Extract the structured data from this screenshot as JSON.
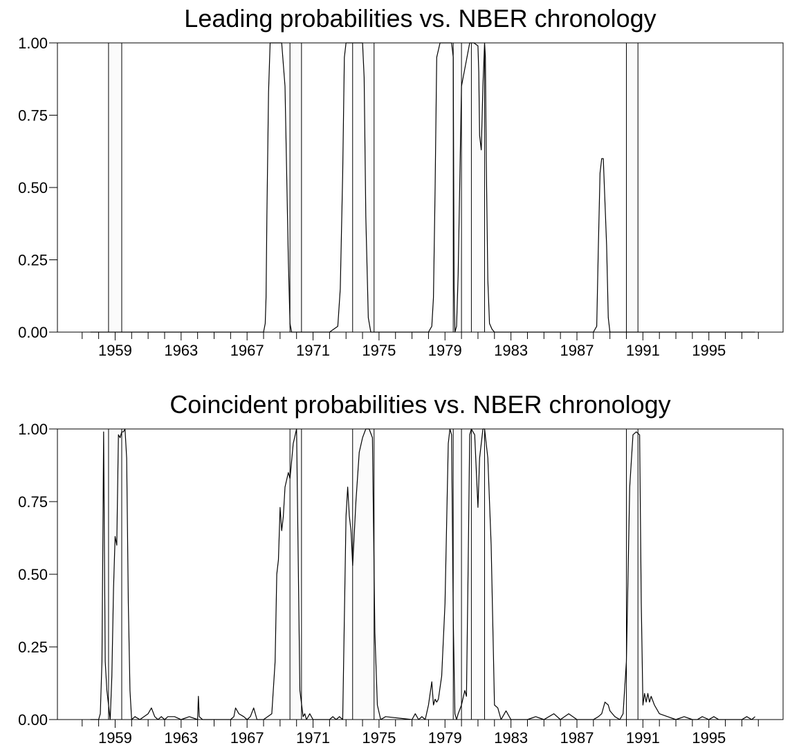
{
  "chart_data": [
    {
      "type": "line",
      "title": "Leading probabilities vs. NBER chronology",
      "xlabel": "",
      "ylabel": "",
      "xlim": [
        1955.5,
        1999.5
      ],
      "ylim": [
        0,
        1
      ],
      "grid": false,
      "legend": "none",
      "x_ticks": [
        "1959",
        "1963",
        "1967",
        "1971",
        "1975",
        "1979",
        "1983",
        "1987",
        "1991",
        "1995"
      ],
      "y_ticks": [
        "0.00",
        "0.25",
        "0.50",
        "0.75",
        "1.00"
      ],
      "recession_bands": [
        [
          1958.6,
          1959.4
        ],
        [
          1969.6,
          1970.3
        ],
        [
          1973.4,
          1974.7
        ],
        [
          1979.5,
          1980.0
        ],
        [
          1980.6,
          1981.4
        ],
        [
          1990.0,
          1990.7
        ]
      ],
      "series": [
        {
          "name": "",
          "x": [
            1957.5,
            1968.0,
            1968.1,
            1968.15,
            1968.2,
            1968.3,
            1968.4,
            1968.6,
            1969.0,
            1969.1,
            1969.3,
            1969.5,
            1969.6,
            1969.7,
            1969.8,
            1972.0,
            1972.5,
            1972.65,
            1972.8,
            1972.9,
            1973.0,
            1973.8,
            1974.0,
            1974.1,
            1974.2,
            1974.35,
            1974.5,
            1978.0,
            1978.2,
            1978.3,
            1978.4,
            1978.5,
            1978.7,
            1979.4,
            1979.5,
            1979.55,
            1979.6,
            1979.7,
            1979.8,
            1980.0,
            1980.5,
            1980.75,
            1981.0,
            1981.05,
            1981.1,
            1981.2,
            1981.3,
            1981.4,
            1981.45,
            1981.5,
            1981.6,
            1981.7,
            1981.85,
            1982.0,
            1988.0,
            1988.2,
            1988.3,
            1988.4,
            1988.5,
            1988.6,
            1988.7,
            1988.8,
            1988.9,
            1989.0,
            1989.2,
            1997.8
          ],
          "y": [
            0,
            0,
            0.03,
            0.12,
            0.4,
            0.83,
            1.0,
            1.0,
            1.0,
            1.0,
            0.85,
            0.25,
            0.03,
            0.0,
            0,
            0,
            0.02,
            0.15,
            0.55,
            0.95,
            1.0,
            1.0,
            1.0,
            0.88,
            0.4,
            0.05,
            0,
            0,
            0.02,
            0.12,
            0.5,
            0.95,
            1.0,
            1.0,
            0.95,
            0.15,
            0.0,
            0.02,
            0.2,
            0.85,
            1.0,
            1.0,
            0.99,
            0.9,
            0.68,
            0.63,
            0.85,
            1.0,
            0.95,
            0.6,
            0.18,
            0.03,
            0.01,
            0,
            0,
            0.02,
            0.3,
            0.55,
            0.6,
            0.6,
            0.45,
            0.3,
            0.05,
            0.0,
            0,
            0
          ]
        }
      ]
    },
    {
      "type": "line",
      "title": "Coincident probabilities vs. NBER chronology",
      "xlabel": "",
      "ylabel": "",
      "xlim": [
        1955.5,
        1999.5
      ],
      "ylim": [
        0,
        1
      ],
      "grid": false,
      "legend": "none",
      "x_ticks": [
        "1959",
        "1963",
        "1967",
        "1971",
        "1975",
        "1979",
        "1983",
        "1987",
        "1991",
        "1995"
      ],
      "y_ticks": [
        "0.00",
        "0.25",
        "0.50",
        "0.75",
        "1.00"
      ],
      "recession_bands": [
        [
          1958.6,
          1959.4
        ],
        [
          1969.6,
          1970.3
        ],
        [
          1973.4,
          1974.7
        ],
        [
          1979.5,
          1980.0
        ],
        [
          1980.6,
          1981.4
        ],
        [
          1990.0,
          1990.7
        ]
      ],
      "series": [
        {
          "name": "",
          "x": [
            1957.5,
            1958.0,
            1958.1,
            1958.2,
            1958.3,
            1958.4,
            1958.5,
            1958.7,
            1958.8,
            1958.9,
            1959.0,
            1959.1,
            1959.2,
            1959.3,
            1959.4,
            1959.5,
            1959.6,
            1959.7,
            1959.8,
            1959.9,
            1960.0,
            1960.2,
            1960.5,
            1961.0,
            1961.2,
            1961.4,
            1961.6,
            1961.8,
            1962.0,
            1962.2,
            1962.4,
            1962.6,
            1963.0,
            1963.5,
            1964.0,
            1964.05,
            1964.1,
            1964.3,
            1966.0,
            1966.2,
            1966.3,
            1966.5,
            1966.8,
            1967.0,
            1967.2,
            1967.4,
            1967.6,
            1968.0,
            1968.5,
            1968.7,
            1968.8,
            1968.9,
            1969.0,
            1969.1,
            1969.2,
            1969.3,
            1969.5,
            1969.6,
            1969.8,
            1970.0,
            1970.2,
            1970.4,
            1970.5,
            1970.6,
            1970.8,
            1971.0,
            1972.0,
            1972.2,
            1972.4,
            1972.6,
            1972.8,
            1973.0,
            1973.1,
            1973.2,
            1973.3,
            1973.4,
            1973.6,
            1973.8,
            1974.0,
            1974.2,
            1974.4,
            1974.6,
            1974.75,
            1974.9,
            1975.1,
            1975.4,
            1977.0,
            1977.2,
            1977.4,
            1977.6,
            1977.8,
            1978.0,
            1978.2,
            1978.3,
            1978.4,
            1978.5,
            1978.6,
            1978.8,
            1979.0,
            1979.2,
            1979.3,
            1979.4,
            1979.5,
            1979.6,
            1979.7,
            1979.8,
            1980.0,
            1980.2,
            1980.3,
            1980.4,
            1980.5,
            1980.6,
            1980.8,
            1981.0,
            1981.1,
            1981.2,
            1981.3,
            1981.4,
            1981.6,
            1981.8,
            1982.0,
            1982.2,
            1982.4,
            1982.5,
            1982.7,
            1983.0,
            1984.0,
            1984.5,
            1985.0,
            1985.3,
            1985.6,
            1986.0,
            1986.5,
            1987.0,
            1988.0,
            1988.3,
            1988.5,
            1988.7,
            1988.9,
            1989.0,
            1989.3,
            1989.6,
            1989.8,
            1990.0,
            1990.2,
            1990.4,
            1990.6,
            1990.8,
            1990.9,
            1991.0,
            1991.1,
            1991.2,
            1991.3,
            1991.4,
            1991.5,
            1991.7,
            1992.0,
            1992.5,
            1993.0,
            1993.5,
            1994.0,
            1994.3,
            1994.6,
            1995.0,
            1995.3,
            1995.6,
            1996.0,
            1997.0,
            1997.3,
            1997.6,
            1997.8
          ],
          "y": [
            0,
            0,
            0.02,
            0.2,
            0.99,
            0.2,
            0.1,
            0.0,
            0.15,
            0.45,
            0.63,
            0.6,
            0.98,
            0.97,
            0.99,
            0.99,
            1.0,
            0.9,
            0.4,
            0.1,
            0.0,
            0.01,
            0.0,
            0.02,
            0.04,
            0.01,
            0.0,
            0.01,
            0.0,
            0.01,
            0.01,
            0.01,
            0.0,
            0.01,
            0.0,
            0.08,
            0.01,
            0.0,
            0.0,
            0.01,
            0.04,
            0.02,
            0.01,
            0.0,
            0.01,
            0.04,
            0.0,
            0.0,
            0.02,
            0.2,
            0.5,
            0.55,
            0.73,
            0.65,
            0.7,
            0.8,
            0.85,
            0.83,
            0.95,
            1.0,
            0.1,
            0.01,
            0.02,
            0.0,
            0.02,
            0.0,
            0.0,
            0.01,
            0.0,
            0.01,
            0.0,
            0.7,
            0.8,
            0.7,
            0.65,
            0.53,
            0.75,
            0.92,
            0.97,
            1.0,
            1.0,
            0.97,
            0.3,
            0.05,
            0.0,
            0.01,
            0.0,
            0.02,
            0.0,
            0.01,
            0.0,
            0.05,
            0.13,
            0.05,
            0.07,
            0.06,
            0.07,
            0.15,
            0.4,
            0.95,
            1.0,
            0.98,
            0.35,
            0.02,
            0.0,
            0.02,
            0.05,
            0.1,
            0.08,
            0.5,
            0.98,
            1.0,
            0.98,
            0.73,
            0.9,
            0.95,
            1.0,
            1.0,
            0.9,
            0.6,
            0.05,
            0.04,
            0.0,
            0.01,
            0.03,
            0.0,
            0.0,
            0.01,
            0.0,
            0.01,
            0.02,
            0.0,
            0.02,
            0.0,
            0.0,
            0.01,
            0.02,
            0.06,
            0.05,
            0.03,
            0.01,
            0.0,
            0.02,
            0.2,
            0.8,
            0.98,
            0.99,
            0.98,
            0.4,
            0.05,
            0.09,
            0.06,
            0.09,
            0.06,
            0.08,
            0.05,
            0.02,
            0.01,
            0.0,
            0.01,
            0.0,
            0.0,
            0.01,
            0.0,
            0.01,
            0.0,
            0.0,
            0.0,
            0.01,
            0.0,
            0.01
          ]
        }
      ]
    }
  ]
}
